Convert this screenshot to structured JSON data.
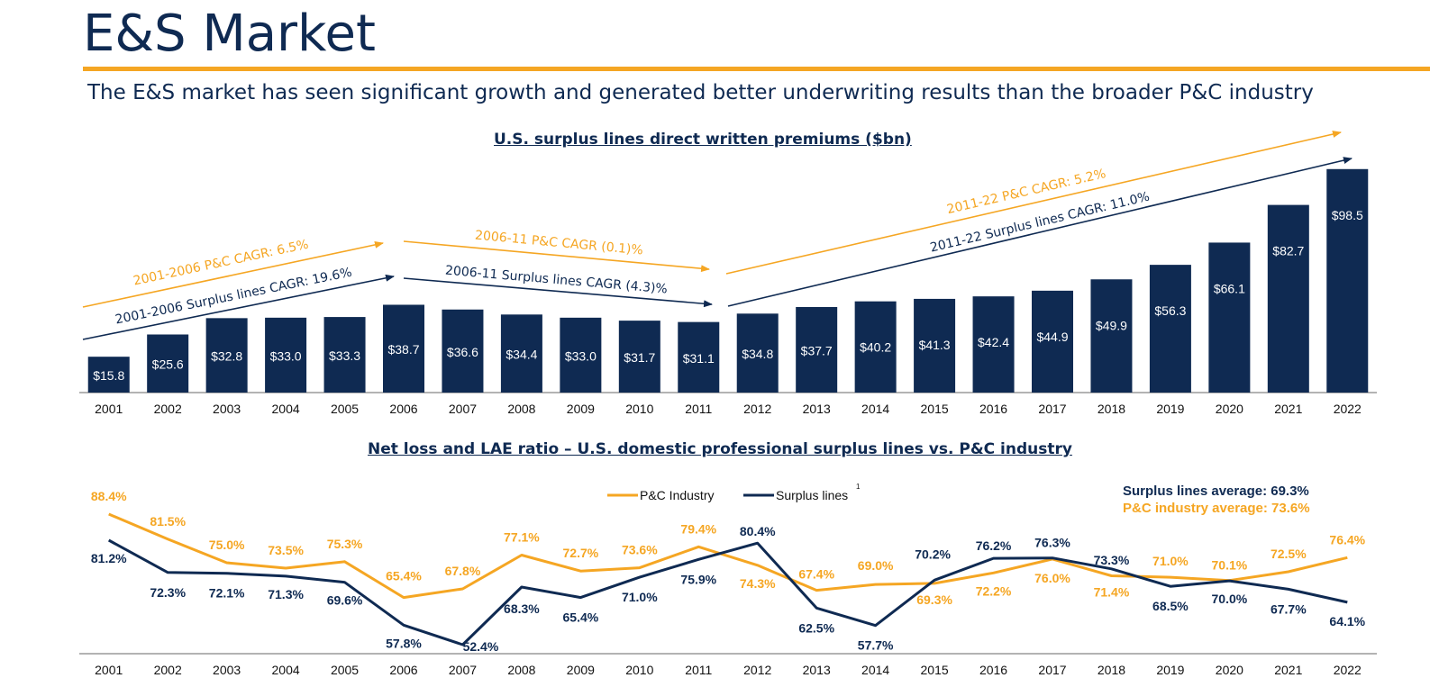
{
  "page": {
    "title": "E&S Market",
    "subtitle": "The E&S market has seen significant growth and generated better underwriting results than the broader P&C industry"
  },
  "colors": {
    "navy": "#0f2a52",
    "orange": "#f5a623",
    "axis": "#9a9a9a"
  },
  "chart_data": [
    {
      "type": "bar",
      "title": "U.S. surplus lines direct written premiums ($bn)",
      "categories": [
        "2001",
        "2002",
        "2003",
        "2004",
        "2005",
        "2006",
        "2007",
        "2008",
        "2009",
        "2010",
        "2011",
        "2012",
        "2013",
        "2014",
        "2015",
        "2016",
        "2017",
        "2018",
        "2019",
        "2020",
        "2021",
        "2022"
      ],
      "values": [
        15.8,
        25.6,
        32.8,
        33.0,
        33.3,
        38.7,
        36.6,
        34.4,
        33.0,
        31.7,
        31.1,
        34.8,
        37.7,
        40.2,
        41.3,
        42.4,
        44.9,
        49.9,
        56.3,
        66.1,
        82.7,
        98.5
      ],
      "value_labels": [
        "$15.8",
        "$25.6",
        "$32.8",
        "$33.0",
        "$33.3",
        "$38.7",
        "$36.6",
        "$34.4",
        "$33.0",
        "$31.7",
        "$31.1",
        "$34.8",
        "$37.7",
        "$40.2",
        "$41.3",
        "$42.4",
        "$44.9",
        "$49.9",
        "$56.3",
        "$66.1",
        "$82.7",
        "$98.5"
      ],
      "bar_color": "#0f2a52",
      "ylim": [
        0,
        100
      ],
      "annotations": [
        {
          "text": "2001-2006 P&C CAGR: 6.5%",
          "color": "#f5a623",
          "from_year": "2001",
          "to_year": "2006",
          "series": "P&C"
        },
        {
          "text": "2001-2006 Surplus lines CAGR: 19.6%",
          "color": "#0f2a52",
          "from_year": "2001",
          "to_year": "2006",
          "series": "Surplus lines"
        },
        {
          "text": "2006-11 P&C CAGR (0.1)%",
          "color": "#f5a623",
          "from_year": "2006",
          "to_year": "2011",
          "series": "P&C"
        },
        {
          "text": "2006-11 Surplus lines CAGR (4.3)%",
          "color": "#0f2a52",
          "from_year": "2006",
          "to_year": "2011",
          "series": "Surplus lines"
        },
        {
          "text": "2011-22 P&C CAGR: 5.2%",
          "color": "#f5a623",
          "from_year": "2011",
          "to_year": "2022",
          "series": "P&C"
        },
        {
          "text": "2011-22 Surplus lines CAGR: 11.0%",
          "color": "#0f2a52",
          "from_year": "2011",
          "to_year": "2022",
          "series": "Surplus lines"
        }
      ]
    },
    {
      "type": "line",
      "title": "Net loss and LAE ratio – U.S. domestic professional surplus lines vs. P&C industry",
      "x": [
        "2001",
        "2002",
        "2003",
        "2004",
        "2005",
        "2006",
        "2007",
        "2008",
        "2009",
        "2010",
        "2011",
        "2012",
        "2013",
        "2014",
        "2015",
        "2016",
        "2017",
        "2018",
        "2019",
        "2020",
        "2021",
        "2022"
      ],
      "ylim": [
        50,
        90
      ],
      "legend": {
        "placement": "top-center",
        "items": [
          "P&C Industry",
          "Surplus lines"
        ],
        "footnote": "1"
      },
      "averages": [
        {
          "text": "Surplus lines average: 69.3%",
          "color": "#0f2a52"
        },
        {
          "text": "P&C industry average: 73.6%",
          "color": "#f5a623"
        }
      ],
      "series": [
        {
          "name": "P&C Industry",
          "color": "#f5a623",
          "values": [
            88.4,
            81.5,
            75.0,
            73.5,
            75.3,
            65.4,
            67.8,
            77.1,
            72.7,
            73.6,
            79.4,
            74.3,
            67.4,
            69.0,
            69.3,
            72.2,
            76.0,
            71.4,
            71.0,
            70.1,
            72.5,
            76.4
          ],
          "labels": [
            "88.4%",
            "81.5%",
            "75.0%",
            "73.5%",
            "75.3%",
            "65.4%",
            "67.8%",
            "77.1%",
            "72.7%",
            "73.6%",
            "79.4%",
            "74.3%",
            "67.4%",
            "69.0%",
            "69.3%",
            "72.2%",
            "76.0%",
            "71.4%",
            "71.0%",
            "70.1%",
            "72.5%",
            "76.4%"
          ]
        },
        {
          "name": "Surplus lines",
          "color": "#0f2a52",
          "values": [
            81.2,
            72.3,
            72.1,
            71.3,
            69.6,
            57.8,
            52.4,
            68.3,
            65.4,
            71.0,
            75.9,
            80.4,
            62.5,
            57.7,
            70.2,
            76.2,
            76.3,
            73.3,
            68.5,
            70.0,
            67.7,
            64.1
          ],
          "labels": [
            "81.2%",
            "72.3%",
            "72.1%",
            "71.3%",
            "69.6%",
            "57.8%",
            "52.4%",
            "68.3%",
            "65.4%",
            "71.0%",
            "75.9%",
            "80.4%",
            "62.5%",
            "57.7%",
            "70.2%",
            "76.2%",
            "76.3%",
            "73.3%",
            "68.5%",
            "70.0%",
            "67.7%",
            "64.1%"
          ]
        }
      ]
    }
  ]
}
